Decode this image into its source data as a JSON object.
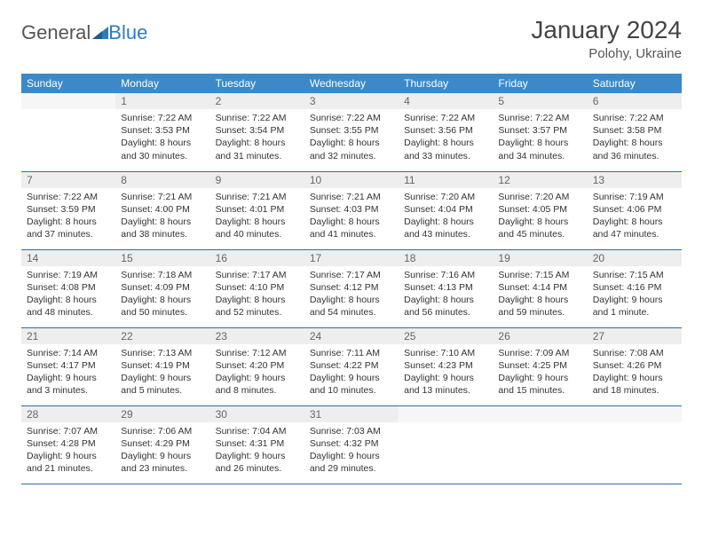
{
  "logo": {
    "part1": "General",
    "part2": "Blue"
  },
  "title": "January 2024",
  "location": "Polohy, Ukraine",
  "weekdays": [
    "Sunday",
    "Monday",
    "Tuesday",
    "Wednesday",
    "Thursday",
    "Friday",
    "Saturday"
  ],
  "colors": {
    "header_bg": "#3b89c9",
    "header_fg": "#ffffff",
    "row_border": "#2f6fa8",
    "daynum_bg": "#eeeeee",
    "logo_blue": "#2f7bbf"
  },
  "grid": {
    "start_weekday": 1,
    "days_in_month": 31
  },
  "days": {
    "1": {
      "sunrise": "Sunrise: 7:22 AM",
      "sunset": "Sunset: 3:53 PM",
      "dl1": "Daylight: 8 hours",
      "dl2": "and 30 minutes."
    },
    "2": {
      "sunrise": "Sunrise: 7:22 AM",
      "sunset": "Sunset: 3:54 PM",
      "dl1": "Daylight: 8 hours",
      "dl2": "and 31 minutes."
    },
    "3": {
      "sunrise": "Sunrise: 7:22 AM",
      "sunset": "Sunset: 3:55 PM",
      "dl1": "Daylight: 8 hours",
      "dl2": "and 32 minutes."
    },
    "4": {
      "sunrise": "Sunrise: 7:22 AM",
      "sunset": "Sunset: 3:56 PM",
      "dl1": "Daylight: 8 hours",
      "dl2": "and 33 minutes."
    },
    "5": {
      "sunrise": "Sunrise: 7:22 AM",
      "sunset": "Sunset: 3:57 PM",
      "dl1": "Daylight: 8 hours",
      "dl2": "and 34 minutes."
    },
    "6": {
      "sunrise": "Sunrise: 7:22 AM",
      "sunset": "Sunset: 3:58 PM",
      "dl1": "Daylight: 8 hours",
      "dl2": "and 36 minutes."
    },
    "7": {
      "sunrise": "Sunrise: 7:22 AM",
      "sunset": "Sunset: 3:59 PM",
      "dl1": "Daylight: 8 hours",
      "dl2": "and 37 minutes."
    },
    "8": {
      "sunrise": "Sunrise: 7:21 AM",
      "sunset": "Sunset: 4:00 PM",
      "dl1": "Daylight: 8 hours",
      "dl2": "and 38 minutes."
    },
    "9": {
      "sunrise": "Sunrise: 7:21 AM",
      "sunset": "Sunset: 4:01 PM",
      "dl1": "Daylight: 8 hours",
      "dl2": "and 40 minutes."
    },
    "10": {
      "sunrise": "Sunrise: 7:21 AM",
      "sunset": "Sunset: 4:03 PM",
      "dl1": "Daylight: 8 hours",
      "dl2": "and 41 minutes."
    },
    "11": {
      "sunrise": "Sunrise: 7:20 AM",
      "sunset": "Sunset: 4:04 PM",
      "dl1": "Daylight: 8 hours",
      "dl2": "and 43 minutes."
    },
    "12": {
      "sunrise": "Sunrise: 7:20 AM",
      "sunset": "Sunset: 4:05 PM",
      "dl1": "Daylight: 8 hours",
      "dl2": "and 45 minutes."
    },
    "13": {
      "sunrise": "Sunrise: 7:19 AM",
      "sunset": "Sunset: 4:06 PM",
      "dl1": "Daylight: 8 hours",
      "dl2": "and 47 minutes."
    },
    "14": {
      "sunrise": "Sunrise: 7:19 AM",
      "sunset": "Sunset: 4:08 PM",
      "dl1": "Daylight: 8 hours",
      "dl2": "and 48 minutes."
    },
    "15": {
      "sunrise": "Sunrise: 7:18 AM",
      "sunset": "Sunset: 4:09 PM",
      "dl1": "Daylight: 8 hours",
      "dl2": "and 50 minutes."
    },
    "16": {
      "sunrise": "Sunrise: 7:17 AM",
      "sunset": "Sunset: 4:10 PM",
      "dl1": "Daylight: 8 hours",
      "dl2": "and 52 minutes."
    },
    "17": {
      "sunrise": "Sunrise: 7:17 AM",
      "sunset": "Sunset: 4:12 PM",
      "dl1": "Daylight: 8 hours",
      "dl2": "and 54 minutes."
    },
    "18": {
      "sunrise": "Sunrise: 7:16 AM",
      "sunset": "Sunset: 4:13 PM",
      "dl1": "Daylight: 8 hours",
      "dl2": "and 56 minutes."
    },
    "19": {
      "sunrise": "Sunrise: 7:15 AM",
      "sunset": "Sunset: 4:14 PM",
      "dl1": "Daylight: 8 hours",
      "dl2": "and 59 minutes."
    },
    "20": {
      "sunrise": "Sunrise: 7:15 AM",
      "sunset": "Sunset: 4:16 PM",
      "dl1": "Daylight: 9 hours",
      "dl2": "and 1 minute."
    },
    "21": {
      "sunrise": "Sunrise: 7:14 AM",
      "sunset": "Sunset: 4:17 PM",
      "dl1": "Daylight: 9 hours",
      "dl2": "and 3 minutes."
    },
    "22": {
      "sunrise": "Sunrise: 7:13 AM",
      "sunset": "Sunset: 4:19 PM",
      "dl1": "Daylight: 9 hours",
      "dl2": "and 5 minutes."
    },
    "23": {
      "sunrise": "Sunrise: 7:12 AM",
      "sunset": "Sunset: 4:20 PM",
      "dl1": "Daylight: 9 hours",
      "dl2": "and 8 minutes."
    },
    "24": {
      "sunrise": "Sunrise: 7:11 AM",
      "sunset": "Sunset: 4:22 PM",
      "dl1": "Daylight: 9 hours",
      "dl2": "and 10 minutes."
    },
    "25": {
      "sunrise": "Sunrise: 7:10 AM",
      "sunset": "Sunset: 4:23 PM",
      "dl1": "Daylight: 9 hours",
      "dl2": "and 13 minutes."
    },
    "26": {
      "sunrise": "Sunrise: 7:09 AM",
      "sunset": "Sunset: 4:25 PM",
      "dl1": "Daylight: 9 hours",
      "dl2": "and 15 minutes."
    },
    "27": {
      "sunrise": "Sunrise: 7:08 AM",
      "sunset": "Sunset: 4:26 PM",
      "dl1": "Daylight: 9 hours",
      "dl2": "and 18 minutes."
    },
    "28": {
      "sunrise": "Sunrise: 7:07 AM",
      "sunset": "Sunset: 4:28 PM",
      "dl1": "Daylight: 9 hours",
      "dl2": "and 21 minutes."
    },
    "29": {
      "sunrise": "Sunrise: 7:06 AM",
      "sunset": "Sunset: 4:29 PM",
      "dl1": "Daylight: 9 hours",
      "dl2": "and 23 minutes."
    },
    "30": {
      "sunrise": "Sunrise: 7:04 AM",
      "sunset": "Sunset: 4:31 PM",
      "dl1": "Daylight: 9 hours",
      "dl2": "and 26 minutes."
    },
    "31": {
      "sunrise": "Sunrise: 7:03 AM",
      "sunset": "Sunset: 4:32 PM",
      "dl1": "Daylight: 9 hours",
      "dl2": "and 29 minutes."
    }
  }
}
